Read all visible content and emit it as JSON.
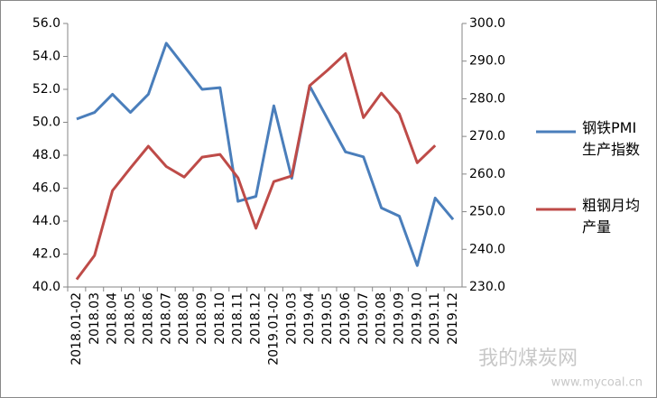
{
  "chart_data": {
    "type": "line",
    "categories": [
      "2018.01-02",
      "2018.03",
      "2018.04",
      "2018.05",
      "2018.06",
      "2018.07",
      "2018.08",
      "2018.09",
      "2018.10",
      "2018.11",
      "2018.12",
      "2019.01-02",
      "2019.03",
      "2019.04",
      "2019.05",
      "2019.06",
      "2019.07",
      "2019.08",
      "2019.09",
      "2019.10",
      "2019.11",
      "2019.12"
    ],
    "series": [
      {
        "name": "钢铁PMI生产指数",
        "color": "#4a7ebb",
        "values": [
          50.2,
          50.6,
          51.7,
          50.6,
          51.7,
          54.8,
          53.4,
          52.0,
          52.1,
          45.2,
          45.5,
          51.0,
          46.6,
          52.2,
          50.2,
          48.2,
          47.9,
          44.8,
          44.3,
          41.3,
          45.4,
          44.1
        ]
      },
      {
        "name": "粗钢月均产量",
        "color": "#be4b48",
        "axis": "y2",
        "values": [
          232,
          238.4,
          255.6,
          261.6,
          267.4,
          262,
          259.2,
          264.5,
          265.2,
          259,
          245.6,
          258,
          259.5,
          283.5,
          287.6,
          292,
          275,
          281.5,
          276,
          263,
          267.6,
          null
        ]
      }
    ],
    "ylim": [
      40,
      56
    ],
    "yticks": [
      {
        "value": 40,
        "label": "40.0"
      },
      {
        "value": 42,
        "label": "42.0"
      },
      {
        "value": 44,
        "label": "44.0"
      },
      {
        "value": 46,
        "label": "46.0"
      },
      {
        "value": 48,
        "label": "48.0"
      },
      {
        "value": 50,
        "label": "50.0"
      },
      {
        "value": 52,
        "label": "52.0"
      },
      {
        "value": 54,
        "label": "54.0"
      },
      {
        "value": 56,
        "label": "56.0"
      }
    ],
    "y2lim": [
      230,
      300
    ],
    "y2ticks": [
      {
        "value": 230,
        "label": "230.0"
      },
      {
        "value": 240,
        "label": "240.0"
      },
      {
        "value": 250,
        "label": "250.0"
      },
      {
        "value": 260,
        "label": "260.0"
      },
      {
        "value": 270,
        "label": "270.0"
      },
      {
        "value": 280,
        "label": "280.0"
      },
      {
        "value": 290,
        "label": "290.0"
      },
      {
        "value": 300,
        "label": "300.0"
      }
    ],
    "legend": "right",
    "watermark": {
      "name": "我的煤炭网",
      "url": "www.mycoal.cn"
    }
  }
}
